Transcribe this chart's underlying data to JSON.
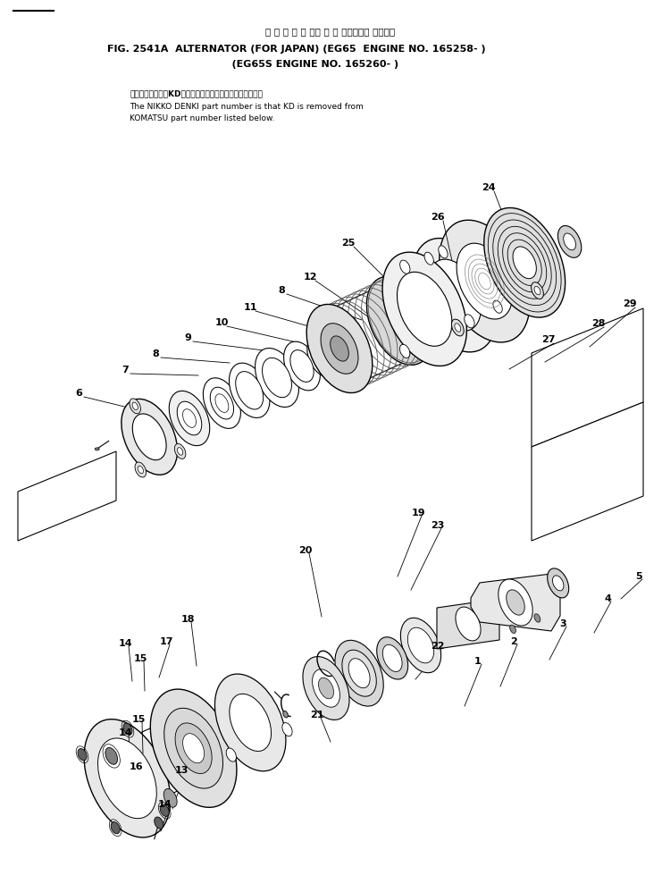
{
  "title_japanese": "オ ル タ ネ ー タ　 国 内 向　　　　 適用号機",
  "title_line1": "FIG. 2541A  ALTERNATOR (FOR JAPAN) (EG65  ENGINE NO. 165258- )",
  "title_line2": "                                    (EG65S ENGINE NO. 165260- )",
  "note_jp": "品番のメーカ記号KDを除いたものが日興電機の品番です。",
  "note_en1": "The NIKKO DENKI part number is that KD is removed from",
  "note_en2": "KOMATSU part number listed below.",
  "bg_color": "#ffffff"
}
